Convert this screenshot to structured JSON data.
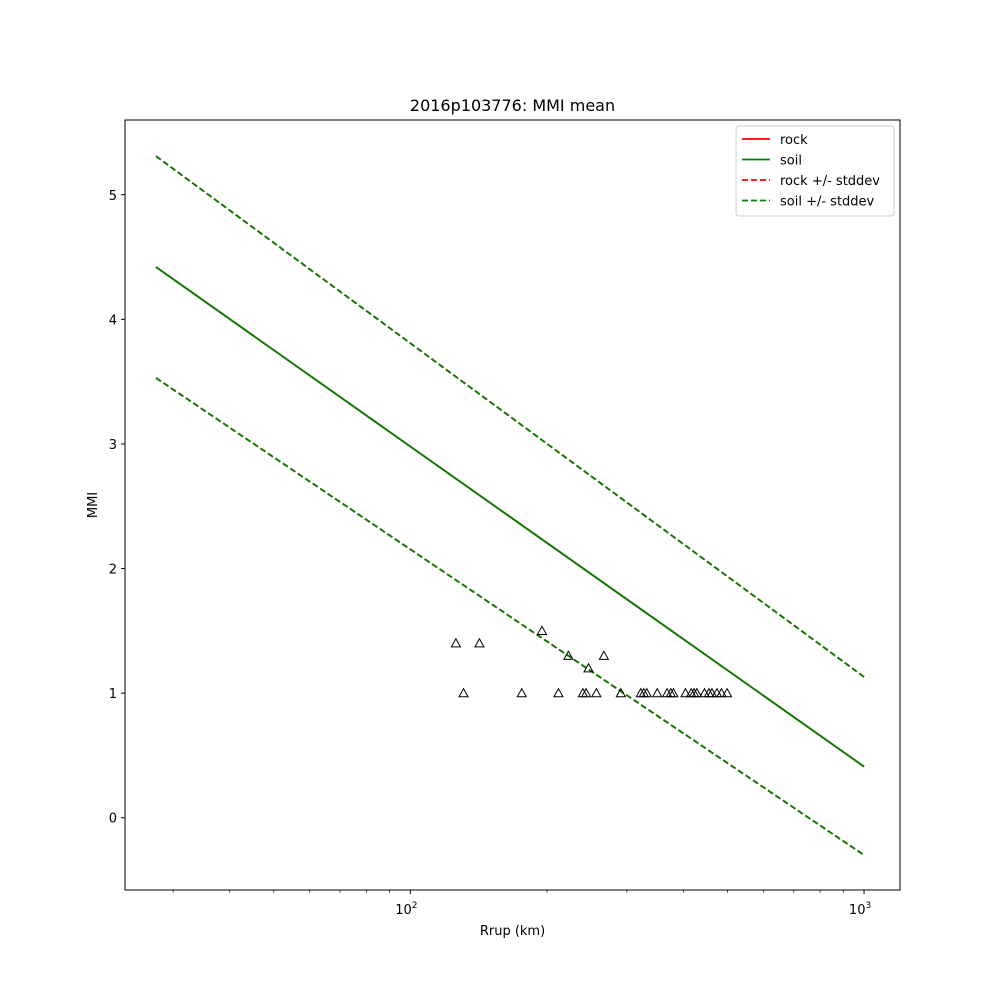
{
  "chart_data": {
    "type": "line",
    "title": "2016p103776: MMI mean",
    "xlabel": "Rrup (km)",
    "ylabel": "MMI",
    "xscale": "log",
    "xlim": [
      23.5,
      1200
    ],
    "ylim": [
      -0.58,
      5.6
    ],
    "grid": false,
    "legend_position": "top-right",
    "x_ticks": [
      {
        "value": 100,
        "base": "10",
        "exp": "2"
      },
      {
        "value": 1000,
        "base": "10",
        "exp": "3"
      }
    ],
    "y_ticks": [
      {
        "value": 0,
        "label": "0"
      },
      {
        "value": 1,
        "label": "1"
      },
      {
        "value": 2,
        "label": "2"
      },
      {
        "value": 3,
        "label": "3"
      },
      {
        "value": 4,
        "label": "4"
      },
      {
        "value": 5,
        "label": "5"
      }
    ],
    "series": [
      {
        "name": "rock",
        "color": "#ff0000",
        "dash": false,
        "x": [
          27.5,
          1000
        ],
        "y": [
          4.42,
          0.41
        ]
      },
      {
        "name": "soil",
        "color": "#008000",
        "dash": false,
        "x": [
          27.5,
          1000
        ],
        "y": [
          4.42,
          0.41
        ]
      },
      {
        "name": "rock +/- stddev",
        "color": "#ff0000",
        "dash": true,
        "x": [
          27.5,
          1000
        ],
        "y": [
          5.31,
          1.13
        ]
      },
      {
        "name": "rock +/- stddev",
        "color": "#ff0000",
        "dash": true,
        "x": [
          27.5,
          1000
        ],
        "y": [
          3.53,
          -0.3
        ]
      },
      {
        "name": "soil +/- stddev",
        "color": "#008000",
        "dash": true,
        "x": [
          27.5,
          1000
        ],
        "y": [
          5.31,
          1.13
        ]
      },
      {
        "name": "soil +/- stddev",
        "color": "#008000",
        "dash": true,
        "x": [
          27.5,
          1000
        ],
        "y": [
          3.53,
          -0.3
        ]
      }
    ],
    "legend": [
      {
        "label": "rock",
        "color": "#ff0000",
        "dash": false
      },
      {
        "label": "soil",
        "color": "#008000",
        "dash": false
      },
      {
        "label": "rock +/- stddev",
        "color": "#ff0000",
        "dash": true
      },
      {
        "label": "soil +/- stddev",
        "color": "#008000",
        "dash": true
      }
    ],
    "observations": {
      "marker": "triangle-open",
      "color": "#000000",
      "points": [
        [
          126,
          1.4
        ],
        [
          131,
          1.0
        ],
        [
          142,
          1.4
        ],
        [
          176,
          1.0
        ],
        [
          195,
          1.5
        ],
        [
          212,
          1.0
        ],
        [
          223,
          1.3
        ],
        [
          240,
          1.0
        ],
        [
          244,
          1.0
        ],
        [
          247,
          1.2
        ],
        [
          257,
          1.0
        ],
        [
          267,
          1.3
        ],
        [
          291,
          1.0
        ],
        [
          322,
          1.0
        ],
        [
          327,
          1.0
        ],
        [
          332,
          1.0
        ],
        [
          350,
          1.0
        ],
        [
          368,
          1.0
        ],
        [
          375,
          1.0
        ],
        [
          380,
          1.0
        ],
        [
          404,
          1.0
        ],
        [
          416,
          1.0
        ],
        [
          422,
          1.0
        ],
        [
          428,
          1.0
        ],
        [
          445,
          1.0
        ],
        [
          455,
          1.0
        ],
        [
          462,
          1.0
        ],
        [
          474,
          1.0
        ],
        [
          485,
          1.0
        ],
        [
          499,
          1.0
        ]
      ]
    }
  }
}
